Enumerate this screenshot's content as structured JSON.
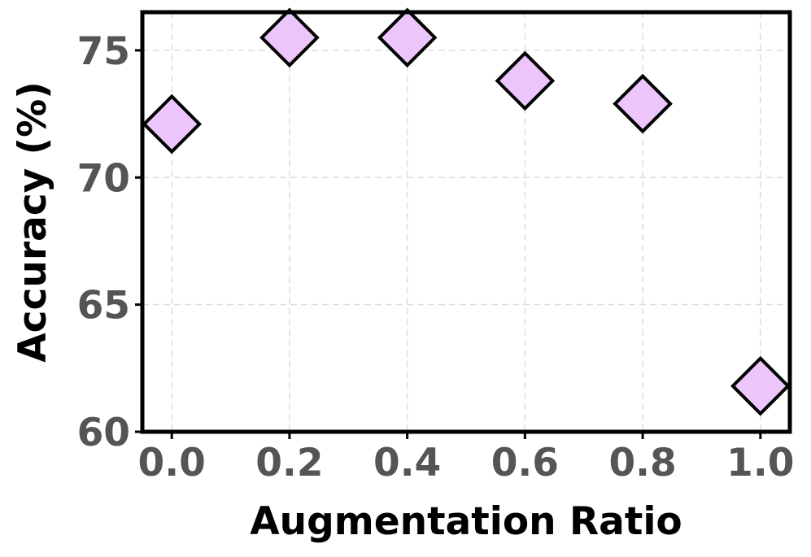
{
  "chart_data": {
    "type": "scatter",
    "title": "",
    "xlabel": "Augmentation Ratio",
    "ylabel": "Accuracy (%)",
    "x": [
      0.0,
      0.2,
      0.4,
      0.6,
      0.8,
      1.0
    ],
    "y": [
      72.1,
      75.5,
      75.5,
      73.8,
      72.9,
      61.8
    ],
    "xlim": [
      -0.05,
      1.05
    ],
    "ylim": [
      60,
      76.5
    ],
    "xticks": [
      0.0,
      0.2,
      0.4,
      0.6,
      0.8,
      1.0
    ],
    "xtick_labels": [
      "0.0",
      "0.2",
      "0.4",
      "0.6",
      "0.8",
      "1.0"
    ],
    "yticks": [
      60,
      65,
      70,
      75
    ],
    "ytick_labels": [
      "60",
      "65",
      "70",
      "75"
    ],
    "grid": true,
    "marker": "diamond",
    "marker_color": "#ecc6fb",
    "marker_edge_color": "#000000"
  }
}
